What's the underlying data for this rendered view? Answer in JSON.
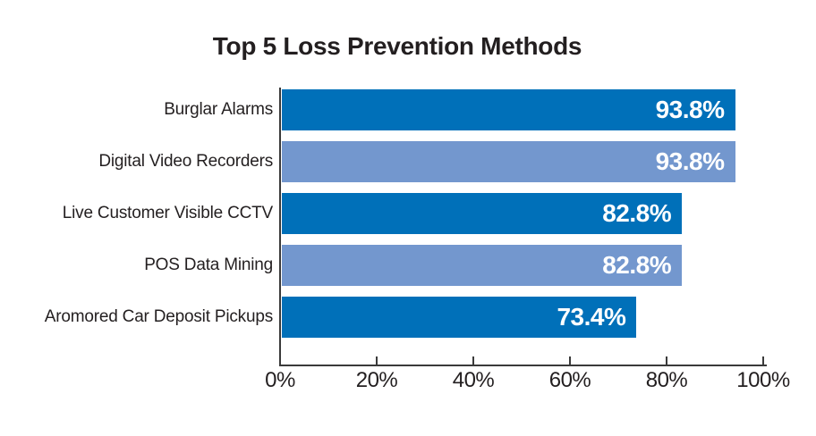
{
  "title": "Top 5 Loss Prevention Methods",
  "chart_data": {
    "type": "bar",
    "orientation": "horizontal",
    "title": "Top 5 Loss Prevention Methods",
    "categories": [
      "Burglar Alarms",
      "Digital Video Recorders",
      "Live Customer Visible CCTV",
      "POS Data Mining",
      "Aromored Car Deposit Pickups"
    ],
    "values": [
      93.8,
      93.8,
      82.8,
      82.8,
      73.4
    ],
    "value_labels": [
      "93.8%",
      "93.8%",
      "82.8%",
      "82.8%",
      "73.4%"
    ],
    "bar_colors": [
      "#0070B9",
      "#7397CE",
      "#0070B9",
      "#7397CE",
      "#0070B9"
    ],
    "xlabel": "",
    "ylabel": "",
    "xlim": [
      0,
      100
    ],
    "x_ticks": [
      0,
      20,
      40,
      60,
      80,
      100
    ],
    "x_tick_labels": [
      "0%",
      "20%",
      "40%",
      "60%",
      "80%",
      "100%"
    ],
    "grid": false,
    "legend": false,
    "value_label_position": "inside-end"
  },
  "colors": {
    "bar_dark": "#0070B9",
    "bar_light": "#7397CE",
    "value_text": "#FFFFFF",
    "label_text": "#231F20",
    "axis_line": "#3A3A3A",
    "background": "#FFFFFF"
  }
}
